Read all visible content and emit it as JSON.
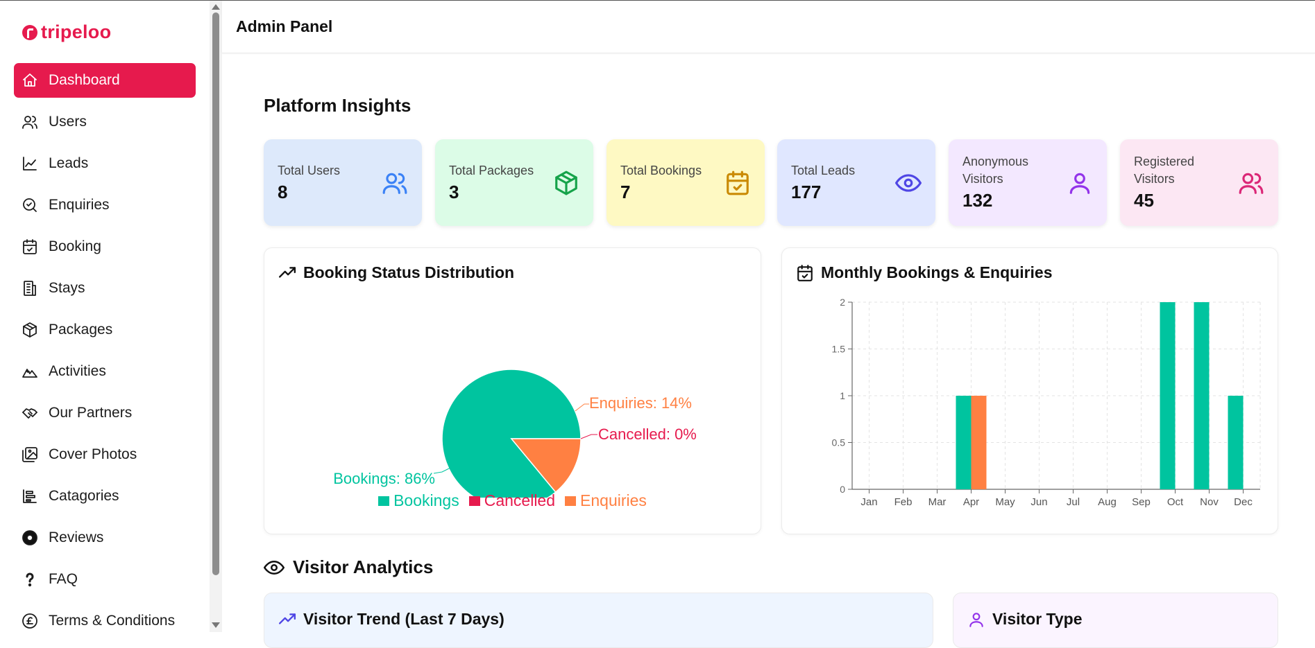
{
  "brand": {
    "logo_text": "tripeloo",
    "accent": "#e61a4d"
  },
  "header": {
    "title": "Admin Panel"
  },
  "sidebar": {
    "items": [
      {
        "label": "Dashboard",
        "icon": "home-icon",
        "active": true
      },
      {
        "label": "Users",
        "icon": "users-icon"
      },
      {
        "label": "Leads",
        "icon": "line-chart-icon"
      },
      {
        "label": "Enquiries",
        "icon": "search-check-icon"
      },
      {
        "label": "Booking",
        "icon": "calendar-check-icon"
      },
      {
        "label": "Stays",
        "icon": "building-icon"
      },
      {
        "label": "Packages",
        "icon": "package-icon"
      },
      {
        "label": "Activities",
        "icon": "mountain-icon"
      },
      {
        "label": "Our Partners",
        "icon": "handshake-icon"
      },
      {
        "label": "Cover Photos",
        "icon": "images-icon"
      },
      {
        "label": "Catagories",
        "icon": "category-list-icon"
      },
      {
        "label": "Reviews",
        "icon": "review-icon"
      },
      {
        "label": "FAQ",
        "icon": "question-icon"
      },
      {
        "label": "Terms & Conditions",
        "icon": "pound-icon"
      }
    ]
  },
  "insights": {
    "title": "Platform Insights",
    "cards": [
      {
        "label": "Total Users",
        "value": "8",
        "icon": "users-icon",
        "bg": "#dde9fb",
        "color": "#3b82f6"
      },
      {
        "label": "Total Packages",
        "value": "3",
        "icon": "package-icon",
        "bg": "#dcfce7",
        "color": "#16a34a"
      },
      {
        "label": "Total Bookings",
        "value": "7",
        "icon": "calendar-check-icon",
        "bg": "#fef9c3",
        "color": "#ca8a04"
      },
      {
        "label": "Total Leads",
        "value": "177",
        "icon": "eye-icon",
        "bg": "#e0e7ff",
        "color": "#4f46e5"
      },
      {
        "label": "Anonymous Visitors",
        "value": "132",
        "icon": "user-icon",
        "bg": "#f3e8ff",
        "color": "#9333ea"
      },
      {
        "label": "Registered Visitors",
        "value": "45",
        "icon": "users-icon",
        "bg": "#fce7f3",
        "color": "#db2777"
      }
    ]
  },
  "booking_status": {
    "title": "Booking Status Distribution",
    "icon": "trending-up-icon"
  },
  "monthly": {
    "title": "Monthly Bookings & Enquiries",
    "icon": "calendar-check-icon"
  },
  "chart_data": [
    {
      "type": "pie",
      "title": "Booking Status Distribution",
      "slices": [
        {
          "name": "Bookings",
          "value": 86,
          "label": "Bookings: 86%",
          "color": "#00c49f"
        },
        {
          "name": "Cancelled",
          "value": 0,
          "label": "Cancelled: 0%",
          "color": "#e61a4d"
        },
        {
          "name": "Enquiries",
          "value": 14,
          "label": "Enquiries: 14%",
          "color": "#ff8042"
        }
      ],
      "legend": [
        "Bookings",
        "Cancelled",
        "Enquiries"
      ],
      "legend_position": "bottom"
    },
    {
      "type": "bar",
      "title": "Monthly Bookings & Enquiries",
      "categories": [
        "Jan",
        "Feb",
        "Mar",
        "Apr",
        "May",
        "Jun",
        "Jul",
        "Aug",
        "Sep",
        "Oct",
        "Nov",
        "Dec"
      ],
      "series": [
        {
          "values": [
            0,
            0,
            0,
            1,
            0,
            0,
            0,
            0,
            0,
            2,
            2,
            1
          ],
          "color": "#00c49f"
        },
        {
          "values": [
            0,
            0,
            0,
            1,
            0,
            0,
            0,
            0,
            0,
            0,
            0,
            0
          ],
          "color": "#ff8042"
        }
      ],
      "yticks": [
        "0",
        "0.5",
        "1",
        "1.5",
        "2"
      ],
      "ylim": [
        0,
        2
      ],
      "grid": true
    }
  ],
  "visitor": {
    "title": "Visitor Analytics",
    "trend_title": "Visitor Trend (Last 7 Days)",
    "type_title": "Visitor Type"
  }
}
